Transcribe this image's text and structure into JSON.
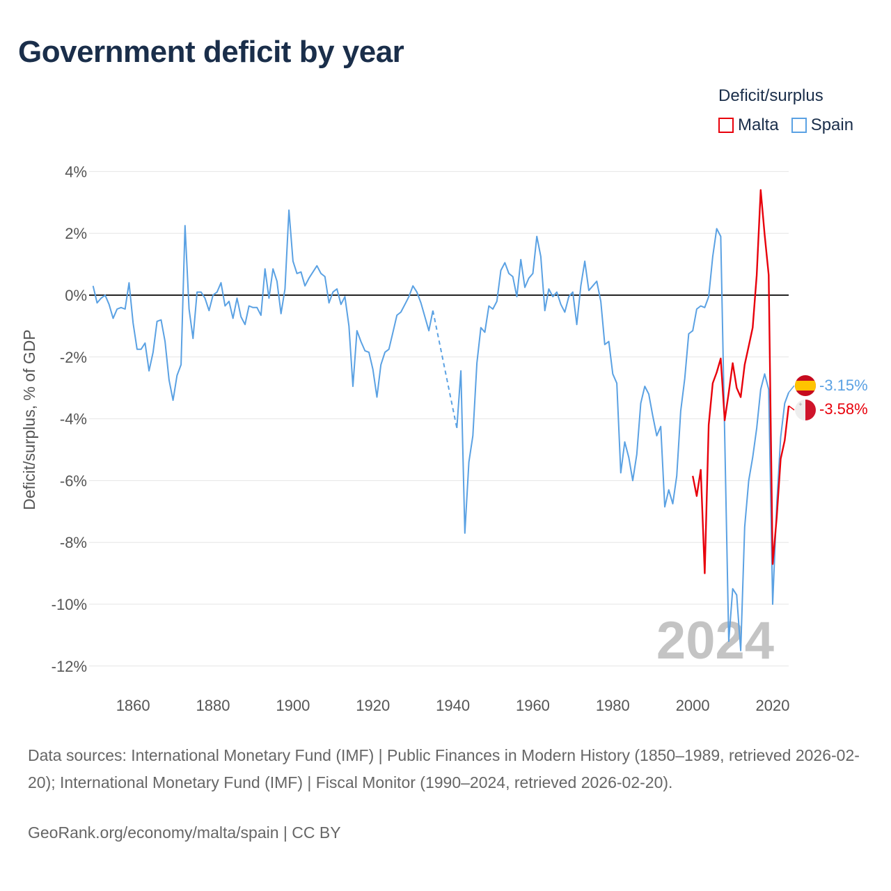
{
  "title": "Government deficit by year",
  "legend": {
    "title": "Deficit/surplus",
    "items": [
      {
        "name": "Malta",
        "color": "#e8000b"
      },
      {
        "name": "Spain",
        "color": "#5aa1e3"
      }
    ]
  },
  "sources": "Data sources: International Monetary Fund (IMF) | Public Finances in Modern History (1850–1989, retrieved 2026-02-20); International Monetary Fund (IMF) | Fiscal Monitor (1990–2024, retrieved 2026-02-20).",
  "credit": "GeoRank.org/economy/malta/spain | CC BY",
  "chart_data": {
    "type": "line",
    "title": "Government deficit by year",
    "xlabel": "",
    "ylabel": "Deficit/surplus, % of GDP",
    "xlim": [
      1849,
      2024
    ],
    "ylim": [
      -13,
      4.5
    ],
    "x_ticks": [
      1860,
      1880,
      1900,
      1920,
      1940,
      1960,
      1980,
      2000,
      2020
    ],
    "y_ticks": [
      4,
      2,
      0,
      -2,
      -4,
      -6,
      -8,
      -10,
      -12
    ],
    "y_tick_labels": [
      "4%",
      "2%",
      "0%",
      "-2%",
      "-4%",
      "-6%",
      "-8%",
      "-10%",
      "-12%"
    ],
    "x_tick_labels": [
      "1860",
      "1880",
      "1900",
      "1920",
      "1940",
      "1960",
      "1980",
      "2000",
      "2020"
    ],
    "grid": true,
    "zero_line": true,
    "current_year": "2024",
    "series": [
      {
        "name": "Spain",
        "color": "#5aa1e3",
        "end_label": "-3.15%",
        "points": [
          [
            1850,
            0.3
          ],
          [
            1851,
            -0.25
          ],
          [
            1852,
            -0.1
          ],
          [
            1853,
            0.0
          ],
          [
            1854,
            -0.3
          ],
          [
            1855,
            -0.75
          ],
          [
            1856,
            -0.45
          ],
          [
            1857,
            -0.4
          ],
          [
            1858,
            -0.45
          ],
          [
            1859,
            0.4
          ],
          [
            1860,
            -0.9
          ],
          [
            1861,
            -1.75
          ],
          [
            1862,
            -1.75
          ],
          [
            1863,
            -1.55
          ],
          [
            1864,
            -2.45
          ],
          [
            1865,
            -1.85
          ],
          [
            1866,
            -0.85
          ],
          [
            1867,
            -0.8
          ],
          [
            1868,
            -1.5
          ],
          [
            1869,
            -2.75
          ],
          [
            1870,
            -3.4
          ],
          [
            1871,
            -2.6
          ],
          [
            1872,
            -2.25
          ],
          [
            1873,
            2.25
          ],
          [
            1874,
            -0.45
          ],
          [
            1875,
            -1.4
          ],
          [
            1876,
            0.1
          ],
          [
            1877,
            0.1
          ],
          [
            1878,
            -0.1
          ],
          [
            1879,
            -0.5
          ],
          [
            1880,
            0.0
          ],
          [
            1881,
            0.1
          ],
          [
            1882,
            0.4
          ],
          [
            1883,
            -0.35
          ],
          [
            1884,
            -0.2
          ],
          [
            1885,
            -0.75
          ],
          [
            1886,
            -0.1
          ],
          [
            1887,
            -0.7
          ],
          [
            1888,
            -0.95
          ],
          [
            1889,
            -0.35
          ],
          [
            1890,
            -0.4
          ],
          [
            1891,
            -0.4
          ],
          [
            1892,
            -0.65
          ],
          [
            1893,
            0.85
          ],
          [
            1894,
            -0.1
          ],
          [
            1895,
            0.85
          ],
          [
            1896,
            0.45
          ],
          [
            1897,
            -0.6
          ],
          [
            1898,
            0.2
          ],
          [
            1899,
            2.75
          ],
          [
            1900,
            1.1
          ],
          [
            1901,
            0.7
          ],
          [
            1902,
            0.75
          ],
          [
            1903,
            0.3
          ],
          [
            1904,
            0.55
          ],
          [
            1905,
            0.75
          ],
          [
            1906,
            0.95
          ],
          [
            1907,
            0.7
          ],
          [
            1908,
            0.6
          ],
          [
            1909,
            -0.25
          ],
          [
            1910,
            0.1
          ],
          [
            1911,
            0.2
          ],
          [
            1912,
            -0.3
          ],
          [
            1913,
            -0.05
          ],
          [
            1914,
            -1.0
          ],
          [
            1915,
            -2.95
          ],
          [
            1916,
            -1.15
          ],
          [
            1917,
            -1.5
          ],
          [
            1918,
            -1.8
          ],
          [
            1919,
            -1.85
          ],
          [
            1920,
            -2.4
          ],
          [
            1921,
            -3.3
          ],
          [
            1922,
            -2.25
          ],
          [
            1923,
            -1.85
          ],
          [
            1924,
            -1.75
          ],
          [
            1925,
            -1.2
          ],
          [
            1926,
            -0.65
          ],
          [
            1927,
            -0.55
          ],
          [
            1928,
            -0.3
          ],
          [
            1929,
            -0.05
          ],
          [
            1930,
            0.3
          ],
          [
            1931,
            0.1
          ],
          [
            1932,
            -0.25
          ],
          [
            1933,
            -0.7
          ],
          [
            1934,
            -1.15
          ],
          [
            1935,
            -0.5
          ],
          [
            1941,
            -4.3
          ],
          [
            1942,
            -2.45
          ],
          [
            1943,
            -7.7
          ],
          [
            1944,
            -5.4
          ],
          [
            1945,
            -4.55
          ],
          [
            1946,
            -2.2
          ],
          [
            1947,
            -1.05
          ],
          [
            1948,
            -1.2
          ],
          [
            1949,
            -0.35
          ],
          [
            1950,
            -0.45
          ],
          [
            1951,
            -0.2
          ],
          [
            1952,
            0.8
          ],
          [
            1953,
            1.05
          ],
          [
            1954,
            0.7
          ],
          [
            1955,
            0.6
          ],
          [
            1956,
            -0.05
          ],
          [
            1957,
            1.15
          ],
          [
            1958,
            0.25
          ],
          [
            1959,
            0.55
          ],
          [
            1960,
            0.7
          ],
          [
            1961,
            1.9
          ],
          [
            1962,
            1.25
          ],
          [
            1963,
            -0.5
          ],
          [
            1964,
            0.2
          ],
          [
            1965,
            -0.05
          ],
          [
            1966,
            0.1
          ],
          [
            1967,
            -0.3
          ],
          [
            1968,
            -0.55
          ],
          [
            1969,
            -0.05
          ],
          [
            1970,
            0.1
          ],
          [
            1971,
            -0.95
          ],
          [
            1972,
            0.3
          ],
          [
            1973,
            1.1
          ],
          [
            1974,
            0.15
          ],
          [
            1975,
            0.3
          ],
          [
            1976,
            0.45
          ],
          [
            1977,
            -0.2
          ],
          [
            1978,
            -1.6
          ],
          [
            1979,
            -1.5
          ],
          [
            1980,
            -2.55
          ],
          [
            1981,
            -2.85
          ],
          [
            1982,
            -5.75
          ],
          [
            1983,
            -4.75
          ],
          [
            1984,
            -5.25
          ],
          [
            1985,
            -6.0
          ],
          [
            1986,
            -5.15
          ],
          [
            1987,
            -3.5
          ],
          [
            1988,
            -2.95
          ],
          [
            1989,
            -3.2
          ],
          [
            1990,
            -3.9
          ],
          [
            1991,
            -4.55
          ],
          [
            1992,
            -4.25
          ],
          [
            1993,
            -6.85
          ],
          [
            1994,
            -6.3
          ],
          [
            1995,
            -6.75
          ],
          [
            1996,
            -5.85
          ],
          [
            1997,
            -3.75
          ],
          [
            1998,
            -2.7
          ],
          [
            1999,
            -1.25
          ],
          [
            2000,
            -1.15
          ],
          [
            2001,
            -0.45
          ],
          [
            2002,
            -0.35
          ],
          [
            2003,
            -0.4
          ],
          [
            2004,
            -0.05
          ],
          [
            2005,
            1.25
          ],
          [
            2006,
            2.15
          ],
          [
            2007,
            1.9
          ],
          [
            2008,
            -4.55
          ],
          [
            2009,
            -11.2
          ],
          [
            2010,
            -9.5
          ],
          [
            2011,
            -9.7
          ],
          [
            2012,
            -11.5
          ],
          [
            2013,
            -7.5
          ],
          [
            2014,
            -6.0
          ],
          [
            2015,
            -5.25
          ],
          [
            2016,
            -4.3
          ],
          [
            2017,
            -3.05
          ],
          [
            2018,
            -2.55
          ],
          [
            2019,
            -3.05
          ],
          [
            2020,
            -10.0
          ],
          [
            2021,
            -6.8
          ],
          [
            2022,
            -4.6
          ],
          [
            2023,
            -3.5
          ],
          [
            2024,
            -3.15
          ]
        ],
        "gap": [
          [
            1935,
            -0.5
          ],
          [
            1941,
            -4.3
          ]
        ]
      },
      {
        "name": "Malta",
        "color": "#e8000b",
        "end_label": "-3.58%",
        "points": [
          [
            2000,
            -5.85
          ],
          [
            2001,
            -6.5
          ],
          [
            2002,
            -5.65
          ],
          [
            2003,
            -9.0
          ],
          [
            2004,
            -4.2
          ],
          [
            2005,
            -2.85
          ],
          [
            2006,
            -2.5
          ],
          [
            2007,
            -2.05
          ],
          [
            2008,
            -4.05
          ],
          [
            2009,
            -3.15
          ],
          [
            2010,
            -2.2
          ],
          [
            2011,
            -3.0
          ],
          [
            2012,
            -3.3
          ],
          [
            2013,
            -2.25
          ],
          [
            2014,
            -1.65
          ],
          [
            2015,
            -1.05
          ],
          [
            2016,
            0.65
          ],
          [
            2017,
            3.4
          ],
          [
            2018,
            1.95
          ],
          [
            2019,
            0.65
          ],
          [
            2020,
            -8.7
          ],
          [
            2021,
            -7.2
          ],
          [
            2022,
            -5.3
          ],
          [
            2023,
            -4.7
          ],
          [
            2024,
            -3.58
          ]
        ]
      }
    ]
  }
}
